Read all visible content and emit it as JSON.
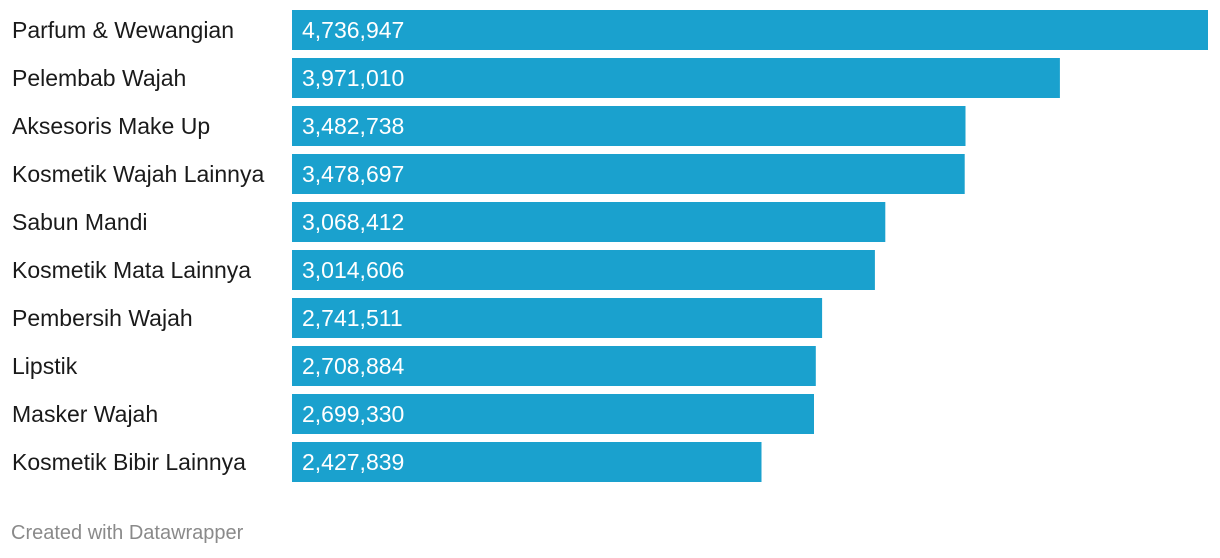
{
  "chart_data": {
    "type": "bar",
    "orientation": "horizontal",
    "categories": [
      "Parfum & Wewangian",
      "Pelembab Wajah",
      "Aksesoris Make Up",
      "Kosmetik Wajah Lainnya",
      "Sabun Mandi",
      "Kosmetik Mata Lainnya",
      "Pembersih Wajah",
      "Lipstik",
      "Masker Wajah",
      "Kosmetik Bibir Lainnya"
    ],
    "values": [
      4736947,
      3971010,
      3482738,
      3478697,
      3068412,
      3014606,
      2741511,
      2708884,
      2699330,
      2427839
    ],
    "value_labels": [
      "4,736,947",
      "3,971,010",
      "3,482,738",
      "3,478,697",
      "3,068,412",
      "3,014,606",
      "2,741,511",
      "2,708,884",
      "2,699,330",
      "2,427,839"
    ],
    "xlim": [
      0,
      4736947
    ],
    "title": "",
    "xlabel": "",
    "ylabel": "",
    "bar_color": "#1aa1ce",
    "grid": false,
    "legend": "none"
  },
  "footer": {
    "credit": "Created with Datawrapper"
  }
}
